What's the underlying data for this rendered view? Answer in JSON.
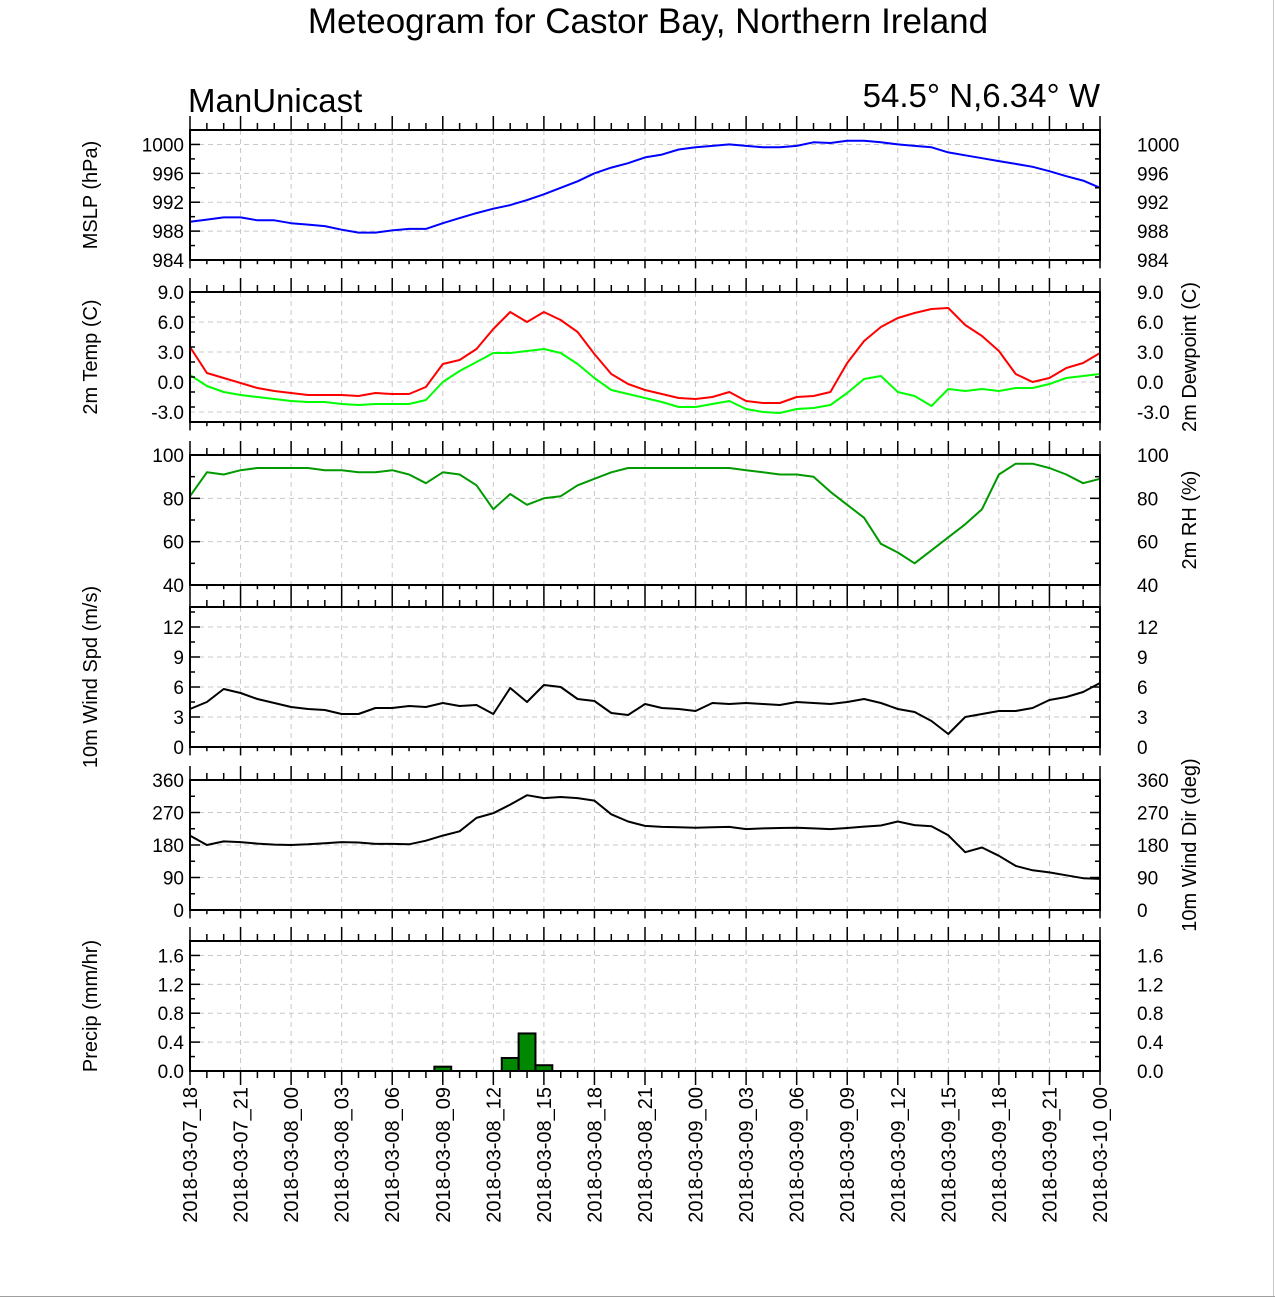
{
  "title": "Meteogram for Castor Bay, Northern Ireland",
  "model_label": "ManUnicast",
  "location_label": "54.5° N,6.34° W",
  "colors": {
    "mslp": "#0000ff",
    "temp": "#ff0000",
    "dewpoint": "#00ff00",
    "rh": "#009900",
    "wind": "#000000",
    "precip_fill": "#008800",
    "grid": "#c8c8c8",
    "axis": "#000000"
  },
  "chart_data": [
    {
      "type": "line",
      "id": "mslp",
      "ylabel_left": "MSLP (hPa)",
      "ylabel_right": "",
      "ylim": [
        984,
        1002
      ],
      "yticks": [
        984,
        988,
        992,
        996,
        1000
      ],
      "ytick_labels": [
        "984",
        "988",
        "992",
        "996",
        "1000"
      ],
      "grid": true,
      "series": [
        {
          "color": "#0000ff",
          "x": [
            0,
            1,
            2,
            3,
            4,
            5,
            6,
            7,
            8,
            9,
            10,
            11,
            12,
            13,
            14,
            15,
            16,
            17,
            18,
            19,
            20,
            21,
            22,
            23,
            24,
            25,
            26,
            27,
            28,
            29,
            30,
            31,
            32,
            33,
            34,
            35,
            36,
            37,
            38,
            39,
            40,
            41,
            42,
            43,
            44,
            45,
            46,
            47,
            48,
            49,
            50,
            51,
            52,
            53,
            54
          ],
          "values": [
            989.3,
            989.6,
            989.9,
            989.9,
            989.5,
            989.5,
            989.1,
            988.9,
            988.7,
            988.2,
            987.8,
            987.8,
            988.1,
            988.3,
            988.3,
            989.1,
            989.8,
            990.5,
            991.1,
            991.6,
            992.3,
            993.1,
            994.0,
            994.9,
            996.0,
            996.8,
            997.4,
            998.2,
            998.6,
            999.3,
            999.6,
            999.8,
            1000.0,
            999.8,
            999.6,
            999.6,
            999.8,
            1000.3,
            1000.2,
            1000.5,
            1000.5,
            1000.3,
            1000.0,
            999.8,
            999.6,
            998.9,
            998.5,
            998.1,
            997.7,
            997.3,
            996.9,
            996.3,
            995.6,
            995.0,
            994.0
          ]
        }
      ]
    },
    {
      "type": "line",
      "id": "temp",
      "ylabel_left": "2m Temp (C)",
      "ylabel_right": "2m Dewpoint (C)",
      "ylim": [
        -4.0,
        9.0
      ],
      "yticks": [
        -3.0,
        0.0,
        3.0,
        6.0,
        9.0
      ],
      "ytick_labels": [
        "-3.0",
        "0.0",
        "3.0",
        "6.0",
        "9.0"
      ],
      "grid": true,
      "series": [
        {
          "color": "#ff0000",
          "x": [
            0,
            1,
            2,
            3,
            4,
            5,
            6,
            7,
            8,
            9,
            10,
            11,
            12,
            13,
            14,
            15,
            16,
            17,
            18,
            19,
            20,
            21,
            22,
            23,
            24,
            25,
            26,
            27,
            28,
            29,
            30,
            31,
            32,
            33,
            34,
            35,
            36,
            37,
            38,
            39,
            40,
            41,
            42,
            43,
            44,
            45,
            46,
            47,
            48,
            49,
            50,
            51,
            52,
            53,
            54
          ],
          "values": [
            3.5,
            0.9,
            0.4,
            -0.1,
            -0.6,
            -0.9,
            -1.1,
            -1.3,
            -1.3,
            -1.3,
            -1.4,
            -1.1,
            -1.2,
            -1.2,
            -0.5,
            1.8,
            2.2,
            3.3,
            5.3,
            7.0,
            6.0,
            7.0,
            6.2,
            5.0,
            2.8,
            0.8,
            -0.2,
            -0.8,
            -1.2,
            -1.6,
            -1.7,
            -1.5,
            -1.0,
            -1.9,
            -2.1,
            -2.1,
            -1.5,
            -1.4,
            -1.0,
            1.9,
            4.1,
            5.5,
            6.4,
            6.9,
            7.3,
            7.4,
            5.7,
            4.6,
            3.1,
            0.8,
            0.0,
            0.4,
            1.4,
            1.9,
            2.9
          ]
        },
        {
          "color": "#00ff00",
          "x": [
            0,
            1,
            2,
            3,
            4,
            5,
            6,
            7,
            8,
            9,
            10,
            11,
            12,
            13,
            14,
            15,
            16,
            17,
            18,
            19,
            20,
            21,
            22,
            23,
            24,
            25,
            26,
            27,
            28,
            29,
            30,
            31,
            32,
            33,
            34,
            35,
            36,
            37,
            38,
            39,
            40,
            41,
            42,
            43,
            44,
            45,
            46,
            47,
            48,
            49,
            50,
            51,
            52,
            53,
            54
          ],
          "values": [
            0.7,
            -0.4,
            -1.0,
            -1.3,
            -1.5,
            -1.7,
            -1.9,
            -2.0,
            -2.0,
            -2.2,
            -2.3,
            -2.2,
            -2.2,
            -2.2,
            -1.8,
            0.0,
            1.1,
            2.0,
            2.9,
            2.9,
            3.1,
            3.3,
            2.9,
            1.8,
            0.4,
            -0.8,
            -1.2,
            -1.6,
            -2.0,
            -2.5,
            -2.5,
            -2.2,
            -1.9,
            -2.7,
            -3.0,
            -3.1,
            -2.7,
            -2.6,
            -2.3,
            -1.1,
            0.3,
            0.6,
            -1.0,
            -1.4,
            -2.4,
            -0.7,
            -0.9,
            -0.7,
            -0.9,
            -0.6,
            -0.6,
            -0.2,
            0.4,
            0.6,
            0.8
          ]
        }
      ]
    },
    {
      "type": "line",
      "id": "rh",
      "ylabel_left": "",
      "ylabel_right": "2m RH (%)",
      "ylim": [
        40,
        100
      ],
      "yticks": [
        40,
        60,
        80,
        100
      ],
      "ytick_labels": [
        "40",
        "60",
        "80",
        "100"
      ],
      "grid": true,
      "series": [
        {
          "color": "#009900",
          "x": [
            0,
            1,
            2,
            3,
            4,
            5,
            6,
            7,
            8,
            9,
            10,
            11,
            12,
            13,
            14,
            15,
            16,
            17,
            18,
            19,
            20,
            21,
            22,
            23,
            24,
            25,
            26,
            27,
            28,
            29,
            30,
            31,
            32,
            33,
            34,
            35,
            36,
            37,
            38,
            39,
            40,
            41,
            42,
            43,
            44,
            45,
            46,
            47,
            48,
            49,
            50,
            51,
            52,
            53,
            54
          ],
          "values": [
            81,
            92,
            91,
            93,
            94,
            94,
            94,
            94,
            93,
            93,
            92,
            92,
            93,
            91,
            87,
            92,
            91,
            86,
            75,
            82,
            77,
            80,
            81,
            86,
            89,
            92,
            94,
            94,
            94,
            94,
            94,
            94,
            94,
            93,
            92,
            91,
            91,
            90,
            83,
            77,
            71,
            59,
            55,
            50,
            56,
            62,
            68,
            75,
            91,
            96,
            96,
            94,
            91,
            87,
            89
          ]
        }
      ]
    },
    {
      "type": "line",
      "id": "wind_speed",
      "ylabel_left": "10m Wind Spd (m/s)",
      "ylabel_right": "",
      "ylim": [
        0,
        14
      ],
      "yticks": [
        0,
        3,
        6,
        9,
        12
      ],
      "ytick_labels": [
        "0",
        "3",
        "6",
        "9",
        "12"
      ],
      "grid": true,
      "series": [
        {
          "color": "#000000",
          "x": [
            0,
            1,
            2,
            3,
            4,
            5,
            6,
            7,
            8,
            9,
            10,
            11,
            12,
            13,
            14,
            15,
            16,
            17,
            18,
            19,
            20,
            21,
            22,
            23,
            24,
            25,
            26,
            27,
            28,
            29,
            30,
            31,
            32,
            33,
            34,
            35,
            36,
            37,
            38,
            39,
            40,
            41,
            42,
            43,
            44,
            45,
            46,
            47,
            48,
            49,
            50,
            51,
            52,
            53,
            54
          ],
          "values": [
            3.8,
            4.5,
            5.8,
            5.4,
            4.8,
            4.4,
            4.0,
            3.8,
            3.7,
            3.3,
            3.3,
            3.9,
            3.9,
            4.1,
            4.0,
            4.4,
            4.1,
            4.2,
            3.3,
            5.9,
            4.5,
            6.2,
            6.0,
            4.8,
            4.6,
            3.4,
            3.2,
            4.3,
            3.9,
            3.8,
            3.6,
            4.4,
            4.3,
            4.4,
            4.3,
            4.2,
            4.5,
            4.4,
            4.3,
            4.5,
            4.8,
            4.4,
            3.8,
            3.5,
            2.6,
            1.3,
            3.0,
            3.3,
            3.6,
            3.6,
            3.9,
            4.7,
            5.0,
            5.5,
            6.4
          ]
        }
      ]
    },
    {
      "type": "line",
      "id": "wind_dir",
      "ylabel_left": "",
      "ylabel_right": "10m Wind Dir (deg)",
      "ylim": [
        0,
        360
      ],
      "yticks": [
        0,
        90,
        180,
        270,
        360
      ],
      "ytick_labels": [
        "0",
        "90",
        "180",
        "270",
        "360"
      ],
      "grid": true,
      "series": [
        {
          "color": "#000000",
          "x": [
            0,
            1,
            2,
            3,
            4,
            5,
            6,
            7,
            8,
            9,
            10,
            11,
            12,
            13,
            14,
            15,
            16,
            17,
            18,
            19,
            20,
            21,
            22,
            23,
            24,
            25,
            26,
            27,
            28,
            29,
            30,
            31,
            32,
            33,
            34,
            35,
            36,
            37,
            38,
            39,
            40,
            41,
            42,
            43,
            44,
            45,
            46,
            47,
            48,
            49,
            50,
            51,
            52,
            53,
            54
          ],
          "values": [
            206,
            180,
            190,
            188,
            184,
            181,
            180,
            182,
            185,
            188,
            187,
            183,
            183,
            182,
            192,
            206,
            218,
            255,
            268,
            292,
            318,
            310,
            313,
            310,
            303,
            265,
            245,
            233,
            230,
            229,
            228,
            229,
            230,
            224,
            226,
            227,
            228,
            226,
            224,
            227,
            231,
            234,
            245,
            235,
            232,
            207,
            160,
            173,
            150,
            122,
            110,
            104,
            96,
            88,
            86
          ]
        }
      ]
    },
    {
      "type": "bar",
      "id": "precip",
      "ylabel_left": "Precip (mm/hr)",
      "ylabel_right": "",
      "ylim": [
        0,
        1.8
      ],
      "yticks": [
        0.0,
        0.4,
        0.8,
        1.2,
        1.6
      ],
      "ytick_labels": [
        "0.0",
        "0.4",
        "0.8",
        "1.2",
        "1.6"
      ],
      "grid": true,
      "series": [
        {
          "color": "#008800",
          "x": [
            15,
            19,
            20,
            21
          ],
          "values": [
            0.06,
            0.18,
            0.52,
            0.08
          ]
        }
      ]
    }
  ],
  "x_axis": {
    "range": [
      0,
      54
    ],
    "ticks": [
      0,
      3,
      6,
      9,
      12,
      15,
      18,
      21,
      24,
      27,
      30,
      33,
      36,
      39,
      42,
      45,
      48,
      51,
      54
    ],
    "tick_labels": [
      "2018-03-07_18",
      "2018-03-07_21",
      "2018-03-08_00",
      "2018-03-08_03",
      "2018-03-08_06",
      "2018-03-08_09",
      "2018-03-08_12",
      "2018-03-08_15",
      "2018-03-08_18",
      "2018-03-08_21",
      "2018-03-09_00",
      "2018-03-09_03",
      "2018-03-09_06",
      "2018-03-09_09",
      "2018-03-09_12",
      "2018-03-09_15",
      "2018-03-09_18",
      "2018-03-09_21",
      "2018-03-10_00"
    ]
  }
}
